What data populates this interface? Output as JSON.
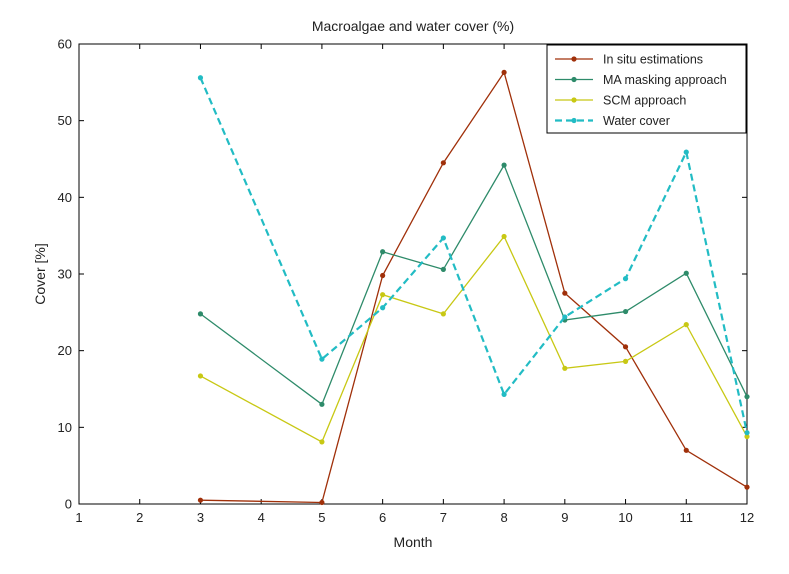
{
  "chart_data": {
    "type": "line",
    "title": "Macroalgae and water cover (%)",
    "xlabel": "Month",
    "ylabel": "Cover [%]",
    "xlim": [
      1,
      12
    ],
    "ylim": [
      0,
      60
    ],
    "xticks": [
      1,
      2,
      3,
      4,
      5,
      6,
      7,
      8,
      9,
      10,
      11,
      12
    ],
    "yticks": [
      0,
      10,
      20,
      30,
      40,
      50,
      60
    ],
    "grid": false,
    "legend_position": "top-right",
    "series": [
      {
        "name": "In situ estimations",
        "color": "#a0300a",
        "dash": "solid",
        "x": [
          3,
          5,
          6,
          7,
          8,
          9,
          10,
          11,
          12
        ],
        "y": [
          0.5,
          0.2,
          29.8,
          44.5,
          56.3,
          27.5,
          20.5,
          7.0,
          2.2
        ]
      },
      {
        "name": "MA masking approach",
        "color": "#2e8b6a",
        "dash": "solid",
        "x": [
          3,
          5,
          6,
          7,
          8,
          9,
          10,
          11,
          12
        ],
        "y": [
          24.8,
          13.0,
          32.9,
          30.6,
          44.2,
          24.0,
          25.1,
          30.1,
          14.0
        ]
      },
      {
        "name": "SCM approach",
        "color": "#c8c814",
        "dash": "solid",
        "x": [
          3,
          5,
          6,
          7,
          8,
          9,
          10,
          11,
          12
        ],
        "y": [
          16.7,
          8.1,
          27.3,
          24.8,
          34.9,
          17.7,
          18.6,
          23.4,
          8.8
        ]
      },
      {
        "name": "Water cover",
        "color": "#22bcc4",
        "dash": "dashed",
        "x": [
          3,
          5,
          6,
          7,
          8,
          9,
          10,
          11,
          12
        ],
        "y": [
          55.6,
          18.9,
          25.6,
          34.7,
          14.3,
          24.4,
          29.4,
          45.9,
          9.3
        ]
      }
    ]
  }
}
